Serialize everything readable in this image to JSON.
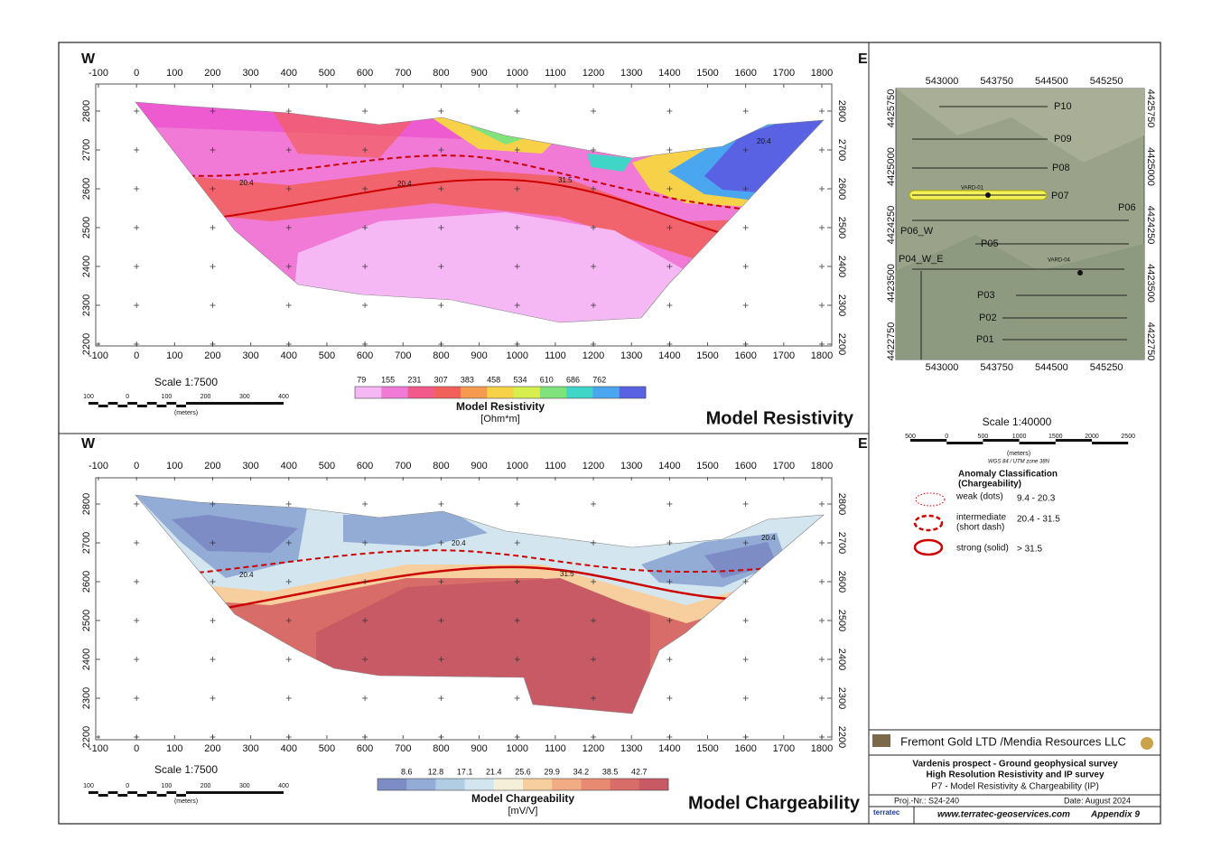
{
  "section_axes": {
    "x_ticks": [
      -100,
      0,
      100,
      200,
      300,
      400,
      500,
      600,
      700,
      800,
      900,
      1000,
      1100,
      1200,
      1300,
      1400,
      1500,
      1600,
      1700,
      1800
    ],
    "elevation_ticks": [
      2800,
      2700,
      2600,
      2500,
      2400,
      2300,
      2200
    ]
  },
  "resistivity": {
    "west": "W",
    "east": "E",
    "title": "Model Resistivity",
    "scale": "Scale 1:7500",
    "scale_ticks": [
      100,
      0,
      100,
      200,
      300,
      400
    ],
    "scale_unit": "(meters)",
    "colorbar_title": "Model Resistivity",
    "colorbar_unit": "[Ohm*m]",
    "colorbar_ticks": [
      79,
      155,
      231,
      307,
      383,
      458,
      534,
      610,
      686,
      762
    ],
    "colorbar_colors": [
      "#f6b8f4",
      "#f07ad6",
      "#f25a8c",
      "#f2605a",
      "#f59a4e",
      "#f7d248",
      "#d7ef4e",
      "#7fe27a",
      "#3fd6c8",
      "#4aa6ee",
      "#5a62e4"
    ],
    "contour_labels": [
      "20.4",
      "20.4",
      "31.5",
      "20.4"
    ]
  },
  "chargeability": {
    "west": "W",
    "east": "E",
    "title": "Model Chargeability",
    "scale": "Scale 1:7500",
    "scale_ticks": [
      100,
      0,
      100,
      200,
      300,
      400
    ],
    "scale_unit": "(meters)",
    "colorbar_title": "Model Chargeability",
    "colorbar_unit": "[mV/V]",
    "colorbar_ticks": [
      8.6,
      12.8,
      17.1,
      21.4,
      25.6,
      29.9,
      34.2,
      38.5,
      42.7
    ],
    "colorbar_colors": [
      "#7d8cc4",
      "#93acd6",
      "#b0cde4",
      "#d3e6f0",
      "#f4efd8",
      "#f7cf9e",
      "#f2ac84",
      "#e88a72",
      "#d86c68",
      "#c85a66"
    ],
    "contour_labels": [
      "20.4",
      "20.4",
      "31.5",
      "20.4"
    ]
  },
  "map": {
    "x_ticks": [
      543000,
      543750,
      544500,
      545250
    ],
    "y_ticks": [
      4425750,
      4425000,
      4424250,
      4423500,
      4422750
    ],
    "profiles": [
      "P10",
      "P09",
      "P08",
      "P07",
      "P06",
      "P06_W",
      "P05",
      "P04_W_E",
      "P03",
      "P02",
      "P01"
    ],
    "boreholes": [
      "VARD-01",
      "VARD-04"
    ],
    "scale": "Scale 1:40000",
    "scale_ticks": [
      500,
      0,
      500,
      1000,
      1500,
      2000,
      2500
    ],
    "scale_unit": "(meters)",
    "datum": "WGS 84 / UTM zone 38N"
  },
  "legend": {
    "title": "Anomaly Classification",
    "subtitle": "(Chargeability)",
    "items": [
      {
        "name": "weak (dots)",
        "range": "9.4 - 20.3"
      },
      {
        "name": "intermediate",
        "detail": "(short dash)",
        "range": "20.4 - 31.5"
      },
      {
        "name": "strong (solid)",
        "range": "> 31.5"
      }
    ]
  },
  "title_block": {
    "client": "Fremont Gold LTD /Mendia Resources LLC",
    "line1": "Vardenis prospect - Ground geophysical survey",
    "line2": "High Resolution Resistivity and IP survey",
    "line3": "P7 - Model Resistivity & Chargeability (IP)",
    "project": "Proj.-Nr.: S24-240",
    "date": "Date: August 2024",
    "company": "terratec",
    "website": "www.terratec-geoservices.com",
    "appendix": "Appendix 9"
  }
}
